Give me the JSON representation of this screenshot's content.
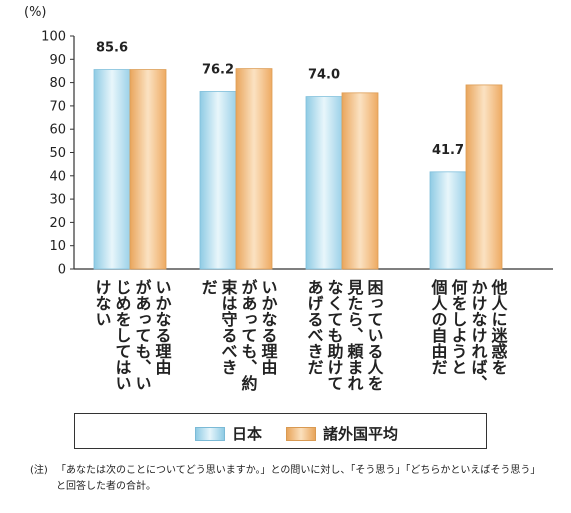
{
  "chart_data": {
    "type": "bar",
    "unit_label": "(%)",
    "ylim": [
      0,
      100
    ],
    "yticks": [
      0,
      10,
      20,
      30,
      40,
      50,
      60,
      70,
      80,
      90,
      100
    ],
    "categories": [
      [
        "いかなる理由",
        "があっても、い",
        "じめをしてはい",
        "けない"
      ],
      [
        "いかなる理由",
        "があっても、約",
        "束は守るべき",
        "だ"
      ],
      [
        "困っている人を",
        "見たら、頼まれ",
        "なくても助けて",
        "あげるべきだ"
      ],
      [
        "他人に迷惑を",
        "かけなければ、",
        "何をしようと",
        "個人の自由だ"
      ]
    ],
    "series": [
      {
        "name": "日本",
        "values": [
          85.6,
          76.2,
          74.0,
          41.7
        ],
        "labels": [
          "85.6",
          "76.2",
          "74.0",
          "41.7"
        ],
        "color": "#a9d8ea"
      },
      {
        "name": "諸外国平均",
        "values": [
          85.6,
          86.0,
          75.6,
          79.0
        ],
        "color": "#efb36f"
      }
    ],
    "grid": false,
    "legend_position": "bottom"
  },
  "legend": {
    "japan_label": "日本",
    "foreign_label": "諸外国平均"
  },
  "note": {
    "head": "(注)",
    "body": "「あなたは次のことについてどう思いますか。」との問いに対し、「そう思う」「どちらかといえばそう思う」と回答した者の合計。"
  }
}
